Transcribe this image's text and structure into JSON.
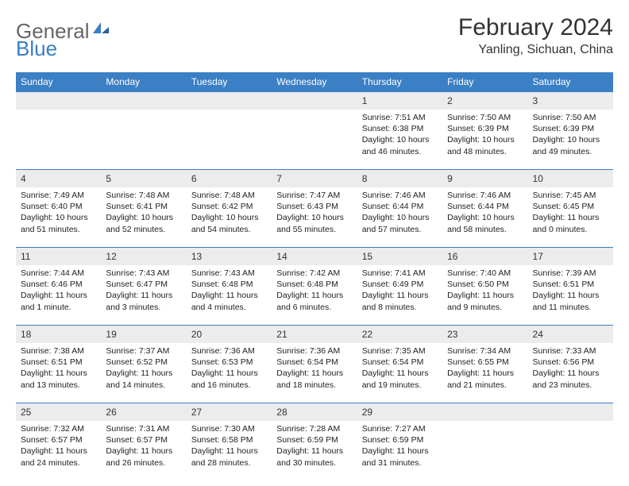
{
  "logo": {
    "text1": "General",
    "text2": "Blue"
  },
  "title": "February 2024",
  "location": "Yanling, Sichuan, China",
  "colors": {
    "header_bg": "#3b7fc4",
    "date_bg": "#ececec",
    "border": "#3b7fc4"
  },
  "day_headers": [
    "Sunday",
    "Monday",
    "Tuesday",
    "Wednesday",
    "Thursday",
    "Friday",
    "Saturday"
  ],
  "weeks": [
    {
      "dates": [
        "",
        "",
        "",
        "",
        "1",
        "2",
        "3"
      ],
      "info": [
        "",
        "",
        "",
        "",
        "Sunrise: 7:51 AM\nSunset: 6:38 PM\nDaylight: 10 hours and 46 minutes.",
        "Sunrise: 7:50 AM\nSunset: 6:39 PM\nDaylight: 10 hours and 48 minutes.",
        "Sunrise: 7:50 AM\nSunset: 6:39 PM\nDaylight: 10 hours and 49 minutes."
      ]
    },
    {
      "dates": [
        "4",
        "5",
        "6",
        "7",
        "8",
        "9",
        "10"
      ],
      "info": [
        "Sunrise: 7:49 AM\nSunset: 6:40 PM\nDaylight: 10 hours and 51 minutes.",
        "Sunrise: 7:48 AM\nSunset: 6:41 PM\nDaylight: 10 hours and 52 minutes.",
        "Sunrise: 7:48 AM\nSunset: 6:42 PM\nDaylight: 10 hours and 54 minutes.",
        "Sunrise: 7:47 AM\nSunset: 6:43 PM\nDaylight: 10 hours and 55 minutes.",
        "Sunrise: 7:46 AM\nSunset: 6:44 PM\nDaylight: 10 hours and 57 minutes.",
        "Sunrise: 7:46 AM\nSunset: 6:44 PM\nDaylight: 10 hours and 58 minutes.",
        "Sunrise: 7:45 AM\nSunset: 6:45 PM\nDaylight: 11 hours and 0 minutes."
      ]
    },
    {
      "dates": [
        "11",
        "12",
        "13",
        "14",
        "15",
        "16",
        "17"
      ],
      "info": [
        "Sunrise: 7:44 AM\nSunset: 6:46 PM\nDaylight: 11 hours and 1 minute.",
        "Sunrise: 7:43 AM\nSunset: 6:47 PM\nDaylight: 11 hours and 3 minutes.",
        "Sunrise: 7:43 AM\nSunset: 6:48 PM\nDaylight: 11 hours and 4 minutes.",
        "Sunrise: 7:42 AM\nSunset: 6:48 PM\nDaylight: 11 hours and 6 minutes.",
        "Sunrise: 7:41 AM\nSunset: 6:49 PM\nDaylight: 11 hours and 8 minutes.",
        "Sunrise: 7:40 AM\nSunset: 6:50 PM\nDaylight: 11 hours and 9 minutes.",
        "Sunrise: 7:39 AM\nSunset: 6:51 PM\nDaylight: 11 hours and 11 minutes."
      ]
    },
    {
      "dates": [
        "18",
        "19",
        "20",
        "21",
        "22",
        "23",
        "24"
      ],
      "info": [
        "Sunrise: 7:38 AM\nSunset: 6:51 PM\nDaylight: 11 hours and 13 minutes.",
        "Sunrise: 7:37 AM\nSunset: 6:52 PM\nDaylight: 11 hours and 14 minutes.",
        "Sunrise: 7:36 AM\nSunset: 6:53 PM\nDaylight: 11 hours and 16 minutes.",
        "Sunrise: 7:36 AM\nSunset: 6:54 PM\nDaylight: 11 hours and 18 minutes.",
        "Sunrise: 7:35 AM\nSunset: 6:54 PM\nDaylight: 11 hours and 19 minutes.",
        "Sunrise: 7:34 AM\nSunset: 6:55 PM\nDaylight: 11 hours and 21 minutes.",
        "Sunrise: 7:33 AM\nSunset: 6:56 PM\nDaylight: 11 hours and 23 minutes."
      ]
    },
    {
      "dates": [
        "25",
        "26",
        "27",
        "28",
        "29",
        "",
        ""
      ],
      "info": [
        "Sunrise: 7:32 AM\nSunset: 6:57 PM\nDaylight: 11 hours and 24 minutes.",
        "Sunrise: 7:31 AM\nSunset: 6:57 PM\nDaylight: 11 hours and 26 minutes.",
        "Sunrise: 7:30 AM\nSunset: 6:58 PM\nDaylight: 11 hours and 28 minutes.",
        "Sunrise: 7:28 AM\nSunset: 6:59 PM\nDaylight: 11 hours and 30 minutes.",
        "Sunrise: 7:27 AM\nSunset: 6:59 PM\nDaylight: 11 hours and 31 minutes.",
        "",
        ""
      ]
    }
  ]
}
